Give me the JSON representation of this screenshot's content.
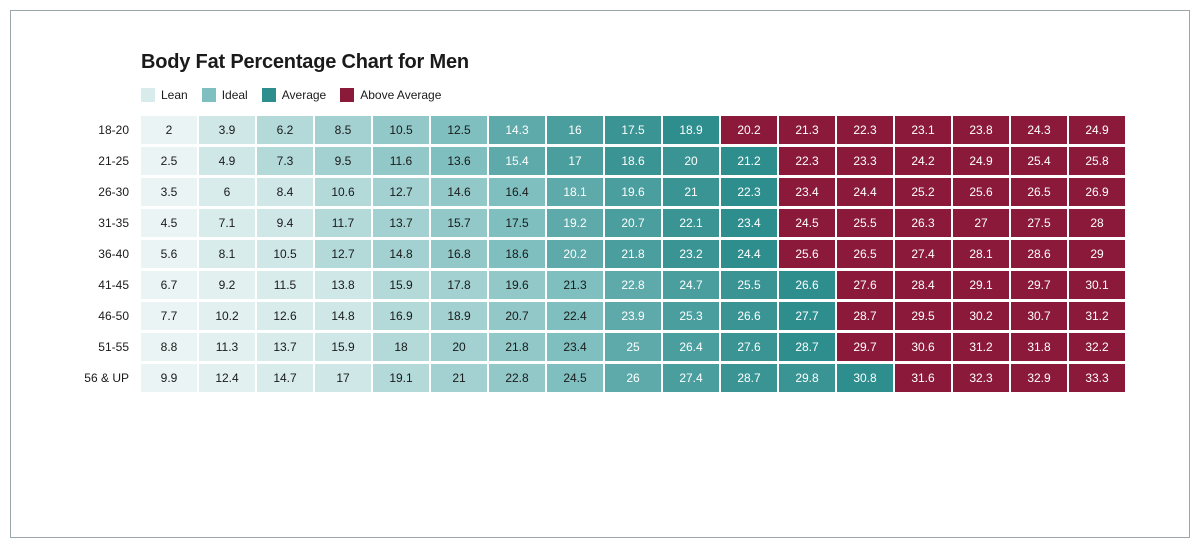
{
  "title": "Body Fat Percentage Chart for Men",
  "legend": [
    {
      "label": "Lean",
      "color": "#d9ecec"
    },
    {
      "label": "Ideal",
      "color": "#7fbfbf"
    },
    {
      "label": "Average",
      "color": "#2e8e8e"
    },
    {
      "label": "Above Average",
      "color": "#8b1a3a"
    }
  ],
  "categoryColors": {
    "lean": [
      "#eaf4f4",
      "#e2f0f0",
      "#d9ecec",
      "#cfe7e7"
    ],
    "ideal": [
      "#b3d9d9",
      "#a3d0d0",
      "#92c8c8",
      "#7fbfbf"
    ],
    "average": [
      "#5ea9a9",
      "#4a9e9e",
      "#3a9494",
      "#2e8e8e"
    ],
    "above": "#8b1a3a"
  },
  "textColors": {
    "dark": "#1a1a1a",
    "light": "#ffffff"
  },
  "rowLabels": [
    "18-20",
    "21-25",
    "26-30",
    "31-35",
    "36-40",
    "41-45",
    "46-50",
    "51-55",
    "56 & UP"
  ],
  "rows": [
    {
      "values": [
        2,
        3.9,
        6.2,
        8.5,
        10.5,
        12.5,
        14.3,
        16,
        17.5,
        18.9,
        20.2,
        21.3,
        22.3,
        23.1,
        23.8,
        24.3,
        24.9
      ],
      "cats": [
        "lean",
        "lean",
        "ideal",
        "ideal",
        "ideal",
        "ideal",
        "average",
        "average",
        "average",
        "average",
        "above",
        "above",
        "above",
        "above",
        "above",
        "above",
        "above"
      ]
    },
    {
      "values": [
        2.5,
        4.9,
        7.3,
        9.5,
        11.6,
        13.6,
        15.4,
        17,
        18.6,
        20,
        21.2,
        22.3,
        23.3,
        24.2,
        24.9,
        25.4,
        25.8
      ],
      "cats": [
        "lean",
        "lean",
        "ideal",
        "ideal",
        "ideal",
        "ideal",
        "average",
        "average",
        "average",
        "average",
        "average",
        "above",
        "above",
        "above",
        "above",
        "above",
        "above"
      ]
    },
    {
      "values": [
        3.5,
        6,
        8.4,
        10.6,
        12.7,
        14.6,
        16.4,
        18.1,
        19.6,
        21,
        22.3,
        23.4,
        24.4,
        25.2,
        25.6,
        26.5,
        26.9
      ],
      "cats": [
        "lean",
        "lean",
        "lean",
        "ideal",
        "ideal",
        "ideal",
        "ideal",
        "average",
        "average",
        "average",
        "average",
        "above",
        "above",
        "above",
        "above",
        "above",
        "above"
      ]
    },
    {
      "values": [
        4.5,
        7.1,
        9.4,
        11.7,
        13.7,
        15.7,
        17.5,
        19.2,
        20.7,
        22.1,
        23.4,
        24.5,
        25.5,
        26.3,
        27,
        27.5,
        28
      ],
      "cats": [
        "lean",
        "lean",
        "lean",
        "ideal",
        "ideal",
        "ideal",
        "ideal",
        "average",
        "average",
        "average",
        "average",
        "above",
        "above",
        "above",
        "above",
        "above",
        "above"
      ]
    },
    {
      "values": [
        5.6,
        8.1,
        10.5,
        12.7,
        14.8,
        16.8,
        18.6,
        20.2,
        21.8,
        23.2,
        24.4,
        25.6,
        26.5,
        27.4,
        28.1,
        28.6,
        29
      ],
      "cats": [
        "lean",
        "lean",
        "lean",
        "ideal",
        "ideal",
        "ideal",
        "ideal",
        "average",
        "average",
        "average",
        "average",
        "above",
        "above",
        "above",
        "above",
        "above",
        "above"
      ]
    },
    {
      "values": [
        6.7,
        9.2,
        11.5,
        13.8,
        15.9,
        17.8,
        19.6,
        21.3,
        22.8,
        24.7,
        25.5,
        26.6,
        27.6,
        28.4,
        29.1,
        29.7,
        30.1
      ],
      "cats": [
        "lean",
        "lean",
        "lean",
        "lean",
        "ideal",
        "ideal",
        "ideal",
        "ideal",
        "average",
        "average",
        "average",
        "average",
        "above",
        "above",
        "above",
        "above",
        "above"
      ]
    },
    {
      "values": [
        7.7,
        10.2,
        12.6,
        14.8,
        16.9,
        18.9,
        20.7,
        22.4,
        23.9,
        25.3,
        26.6,
        27.7,
        28.7,
        29.5,
        30.2,
        30.7,
        31.2
      ],
      "cats": [
        "lean",
        "lean",
        "lean",
        "lean",
        "ideal",
        "ideal",
        "ideal",
        "ideal",
        "average",
        "average",
        "average",
        "average",
        "above",
        "above",
        "above",
        "above",
        "above"
      ]
    },
    {
      "values": [
        8.8,
        11.3,
        13.7,
        15.9,
        18,
        20,
        21.8,
        23.4,
        25,
        26.4,
        27.6,
        28.7,
        29.7,
        30.6,
        31.2,
        31.8,
        32.2
      ],
      "cats": [
        "lean",
        "lean",
        "lean",
        "lean",
        "ideal",
        "ideal",
        "ideal",
        "ideal",
        "average",
        "average",
        "average",
        "average",
        "above",
        "above",
        "above",
        "above",
        "above"
      ]
    },
    {
      "values": [
        9.9,
        12.4,
        14.7,
        17,
        19.1,
        21,
        22.8,
        24.5,
        26,
        27.4,
        28.7,
        29.8,
        30.8,
        31.6,
        32.3,
        32.9,
        33.3
      ],
      "cats": [
        "lean",
        "lean",
        "lean",
        "lean",
        "ideal",
        "ideal",
        "ideal",
        "ideal",
        "average",
        "average",
        "average",
        "average",
        "average",
        "above",
        "above",
        "above",
        "above"
      ]
    }
  ],
  "columnsPerRow": 17,
  "cell": {
    "width": 56,
    "height": 28,
    "gap": 2,
    "fontSize": 12
  }
}
